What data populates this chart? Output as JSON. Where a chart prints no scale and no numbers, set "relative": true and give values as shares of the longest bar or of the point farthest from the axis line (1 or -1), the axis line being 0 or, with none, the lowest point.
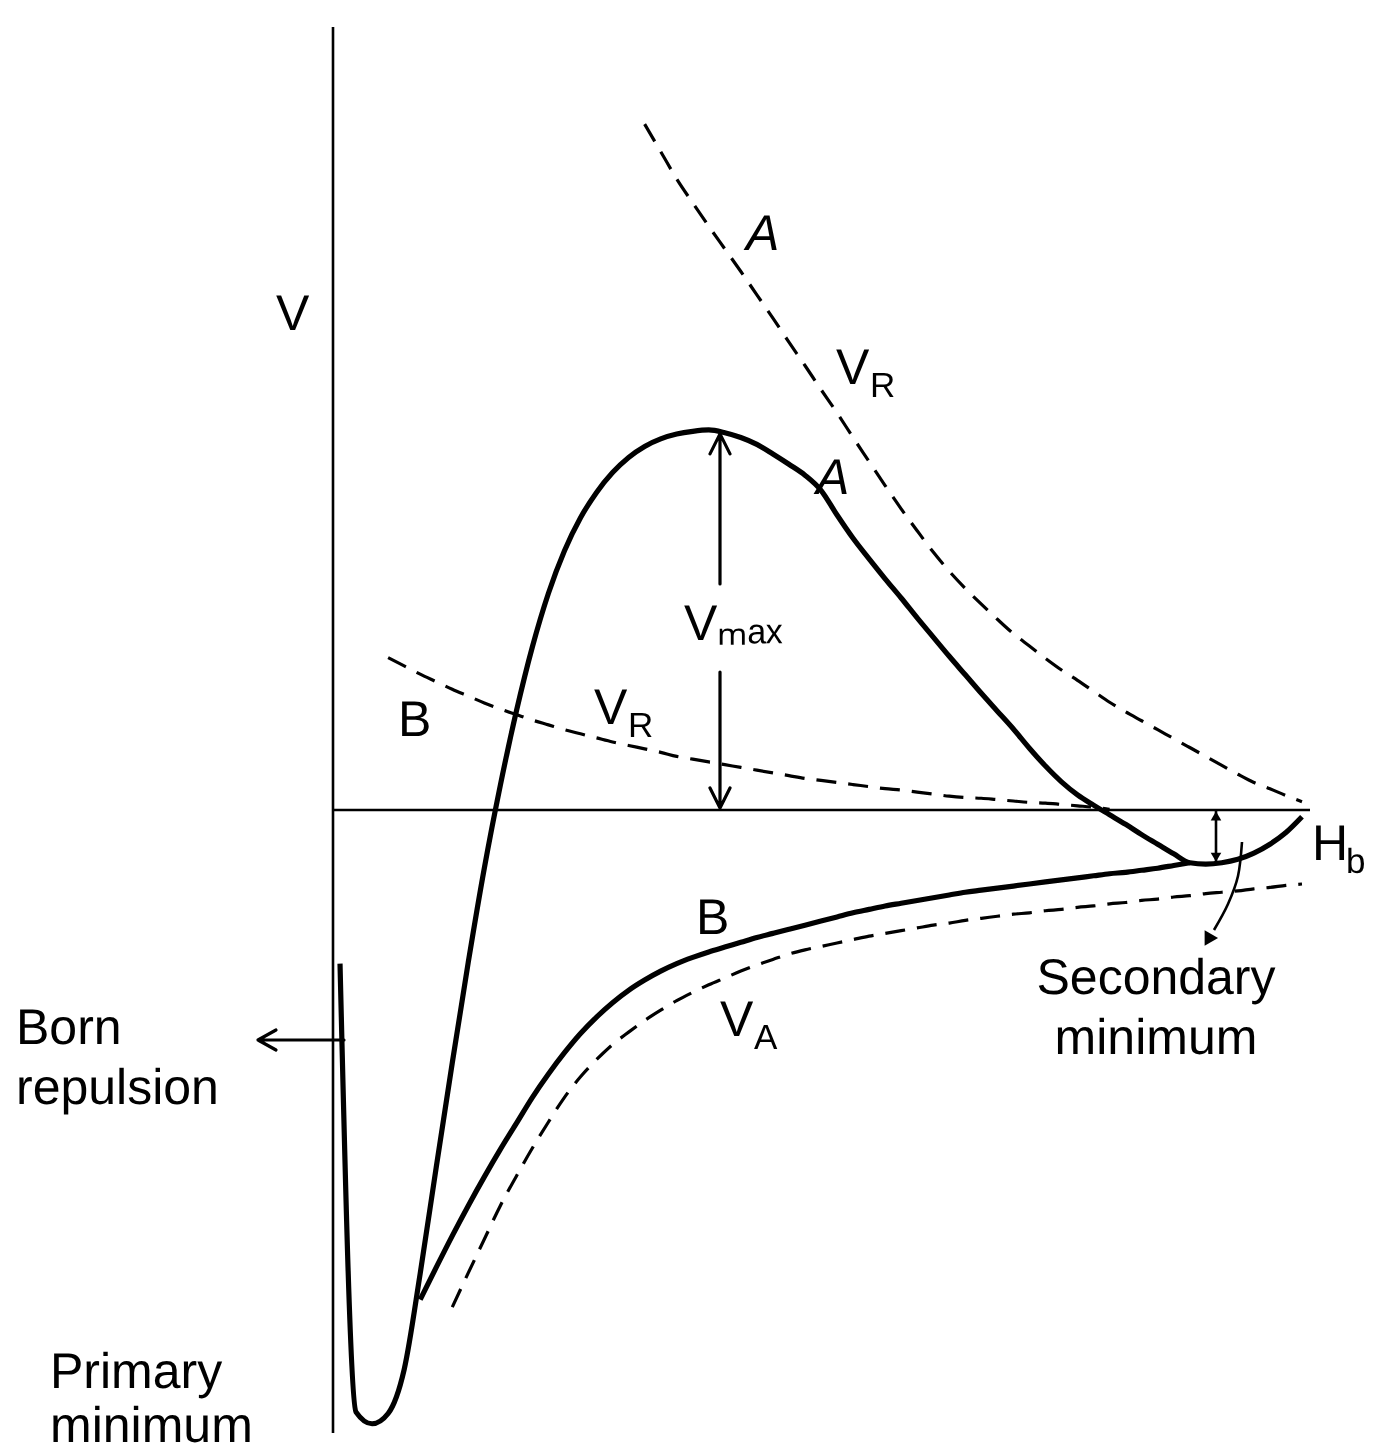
{
  "chart_data": {
    "type": "line",
    "relative": true,
    "xlabel": "H$_{b}$",
    "ylabel": "V",
    "annotations": [
      "A",
      "B",
      "Vₘₐₓ",
      "Born repulsion",
      "Primary minimum",
      "Secondary minimum"
    ],
    "categories": [
      null,
      null,
      null,
      null,
      null,
      null,
      null,
      null,
      null,
      null,
      null,
      null,
      null,
      null,
      null,
      null,
      null,
      null,
      null,
      null,
      null,
      null,
      null,
      null,
      null,
      null,
      null,
      null,
      null,
      null,
      null,
      null,
      null,
      null,
      null,
      null,
      null,
      null,
      null,
      null,
      null,
      null,
      null,
      null,
      null,
      null,
      null,
      null,
      null,
      null,
      null,
      null,
      null,
      null,
      null,
      null,
      null,
      null,
      null,
      null,
      null
    ],
    "series": [
      {
        "name": "V$_{R}$",
        "color": "#000000",
        "line_style": "dashed",
        "values": [
          null,
          null,
          null,
          null,
          null,
          null,
          null,
          null,
          null,
          null,
          null,
          null,
          null,
          null,
          null,
          null,
          null,
          null,
          null,
          1.0,
          0.96,
          0.92,
          0.885,
          0.851,
          0.818,
          0.785,
          0.751,
          0.717,
          0.682,
          0.648,
          0.613,
          0.579,
          0.543,
          0.508,
          0.473,
          0.439,
          0.407,
          0.376,
          0.348,
          0.323,
          0.3,
          0.278,
          0.257,
          0.239,
          0.221,
          0.204,
          0.189,
          0.173,
          0.157,
          0.143,
          0.13,
          0.117,
          0.104,
          0.091,
          0.078,
          0.065,
          0.052,
          0.04,
          0.031,
          0.021,
          0.012
        ]
      },
      {
        "name": "A",
        "color": "#000000",
        "line_style": "solid",
        "values": [
          -0.224,
          -0.878,
          -0.895,
          -0.88,
          -0.816,
          -0.676,
          -0.521,
          -0.369,
          -0.222,
          -0.085,
          0.036,
          0.144,
          0.238,
          0.316,
          0.378,
          0.426,
          0.463,
          0.492,
          0.514,
          0.53,
          0.541,
          0.548,
          0.552,
          0.554,
          0.55,
          0.543,
          0.533,
          0.519,
          0.504,
          0.488,
          0.466,
          0.43,
          0.396,
          0.366,
          0.337,
          0.309,
          0.28,
          0.252,
          0.224,
          0.197,
          0.17,
          0.144,
          0.118,
          0.09,
          0.064,
          0.041,
          0.022,
          0.007,
          -0.007,
          -0.021,
          -0.036,
          -0.05,
          -0.064,
          -0.077,
          -0.079,
          -0.077,
          -0.072,
          -0.063,
          -0.05,
          -0.033,
          -0.01
        ]
      },
      {
        "name": "V$_{R}$",
        "color": "#000000",
        "line_style": "dashed",
        "values": [
          null,
          null,
          null,
          0.222,
          0.21,
          0.198,
          0.187,
          0.176,
          0.166,
          0.156,
          0.147,
          0.139,
          0.131,
          0.124,
          0.117,
          0.111,
          0.105,
          0.099,
          0.094,
          0.089,
          0.084,
          0.078,
          0.074,
          0.07,
          0.066,
          0.062,
          0.058,
          0.054,
          0.05,
          0.046,
          0.043,
          0.04,
          0.037,
          0.034,
          0.031,
          0.029,
          0.026,
          0.023,
          0.02,
          0.018,
          0.017,
          0.015,
          0.013,
          0.011,
          0.01,
          0.008,
          0.006,
          0.004,
          0.001,
          null,
          null,
          null,
          null,
          null,
          null,
          null,
          null,
          null,
          null,
          null,
          null
        ]
      },
      {
        "name": "B",
        "color": "#000000",
        "line_style": "solid",
        "values": [
          null,
          null,
          null,
          null,
          null,
          -0.714,
          -0.667,
          -0.621,
          -0.577,
          -0.535,
          -0.495,
          -0.457,
          -0.419,
          -0.385,
          -0.354,
          -0.326,
          -0.302,
          -0.281,
          -0.263,
          -0.248,
          -0.235,
          -0.224,
          -0.215,
          -0.207,
          -0.2,
          -0.193,
          -0.186,
          -0.18,
          -0.174,
          -0.168,
          -0.162,
          -0.156,
          -0.15,
          -0.145,
          -0.14,
          -0.136,
          -0.132,
          -0.128,
          -0.124,
          -0.12,
          -0.117,
          -0.114,
          -0.111,
          -0.108,
          -0.105,
          -0.102,
          -0.099,
          -0.096,
          -0.093,
          -0.091,
          -0.088,
          -0.085,
          -0.081,
          -0.077,
          null,
          null,
          null,
          null,
          null,
          null,
          null
        ]
      },
      {
        "name": "V$_{A}$",
        "color": "#000000",
        "line_style": "dashed",
        "values": [
          null,
          null,
          null,
          null,
          null,
          null,
          null,
          -0.725,
          -0.675,
          -0.626,
          -0.577,
          -0.534,
          -0.493,
          -0.455,
          -0.419,
          -0.389,
          -0.364,
          -0.342,
          -0.324,
          -0.307,
          -0.292,
          -0.278,
          -0.266,
          -0.255,
          -0.245,
          -0.235,
          -0.226,
          -0.218,
          -0.21,
          -0.204,
          -0.199,
          -0.194,
          -0.189,
          -0.184,
          -0.18,
          -0.176,
          -0.172,
          -0.168,
          -0.165,
          -0.161,
          -0.158,
          -0.155,
          -0.152,
          -0.15,
          -0.147,
          -0.145,
          -0.142,
          -0.14,
          -0.137,
          -0.135,
          -0.132,
          -0.13,
          -0.127,
          -0.125,
          -0.122,
          -0.12,
          -0.118,
          -0.115,
          -0.113,
          -0.11,
          -0.108
        ]
      }
    ]
  }
}
